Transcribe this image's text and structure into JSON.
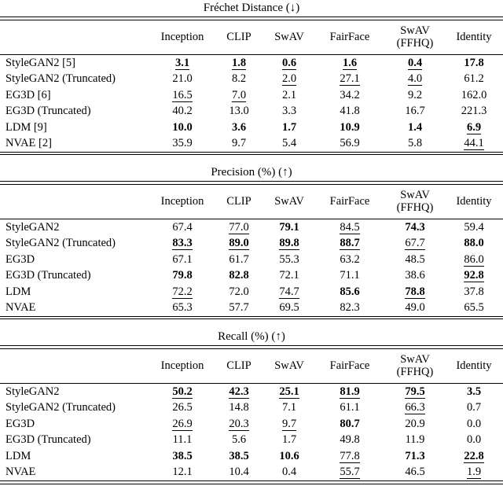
{
  "page": {
    "background": "#ffffff",
    "text_color": "#000000"
  },
  "columns": [
    "Inception",
    "CLIP",
    "SwAV",
    "FairFace",
    "SwAV\n(FFHQ)",
    "Identity"
  ],
  "style_legend": {
    "b": "bold",
    "u": "underline",
    "bu": "bold+underline",
    "": "plain"
  },
  "tables": [
    {
      "title": "Fréchet Distance (↓)",
      "rows": [
        {
          "label": "StyleGAN2 [5]",
          "cells": [
            [
              "3.1",
              "bu"
            ],
            [
              "1.8",
              "bu"
            ],
            [
              "0.6",
              "bu"
            ],
            [
              "1.6",
              "bu"
            ],
            [
              "0.4",
              "bu"
            ],
            [
              "17.8",
              "b"
            ]
          ]
        },
        {
          "label": "StyleGAN2 (Truncated)",
          "cells": [
            [
              "21.0",
              ""
            ],
            [
              "8.2",
              ""
            ],
            [
              "2.0",
              "u"
            ],
            [
              "27.1",
              "u"
            ],
            [
              "4.0",
              "u"
            ],
            [
              "61.2",
              ""
            ]
          ]
        },
        {
          "label": "EG3D [6]",
          "cells": [
            [
              "16.5",
              "u"
            ],
            [
              "7.0",
              "u"
            ],
            [
              "2.1",
              ""
            ],
            [
              "34.2",
              ""
            ],
            [
              "9.2",
              ""
            ],
            [
              "162.0",
              ""
            ]
          ]
        },
        {
          "label": "EG3D (Truncated)",
          "cells": [
            [
              "40.2",
              ""
            ],
            [
              "13.0",
              ""
            ],
            [
              "3.3",
              ""
            ],
            [
              "41.8",
              ""
            ],
            [
              "16.7",
              ""
            ],
            [
              "221.3",
              ""
            ]
          ]
        },
        {
          "label": "LDM [9]",
          "cells": [
            [
              "10.0",
              "b"
            ],
            [
              "3.6",
              "b"
            ],
            [
              "1.7",
              "b"
            ],
            [
              "10.9",
              "b"
            ],
            [
              "1.4",
              "b"
            ],
            [
              "6.9",
              "bu"
            ]
          ]
        },
        {
          "label": "NVAE [2]",
          "cells": [
            [
              "35.9",
              ""
            ],
            [
              "9.7",
              ""
            ],
            [
              "5.4",
              ""
            ],
            [
              "56.9",
              ""
            ],
            [
              "5.8",
              ""
            ],
            [
              "44.1",
              "u"
            ]
          ]
        }
      ]
    },
    {
      "title": "Precision (%) (↑)",
      "rows": [
        {
          "label": "StyleGAN2",
          "cells": [
            [
              "67.4",
              ""
            ],
            [
              "77.0",
              "u"
            ],
            [
              "79.1",
              "b"
            ],
            [
              "84.5",
              "u"
            ],
            [
              "74.3",
              "b"
            ],
            [
              "59.4",
              ""
            ]
          ]
        },
        {
          "label": "StyleGAN2 (Truncated)",
          "cells": [
            [
              "83.3",
              "bu"
            ],
            [
              "89.0",
              "bu"
            ],
            [
              "89.8",
              "bu"
            ],
            [
              "88.7",
              "bu"
            ],
            [
              "67.7",
              "u"
            ],
            [
              "88.0",
              "b"
            ]
          ]
        },
        {
          "label": "EG3D",
          "cells": [
            [
              "67.1",
              ""
            ],
            [
              "61.7",
              ""
            ],
            [
              "55.3",
              ""
            ],
            [
              "63.2",
              ""
            ],
            [
              "48.5",
              ""
            ],
            [
              "86.0",
              "u"
            ]
          ]
        },
        {
          "label": "EG3D (Truncated)",
          "cells": [
            [
              "79.8",
              "b"
            ],
            [
              "82.8",
              "b"
            ],
            [
              "72.1",
              ""
            ],
            [
              "71.1",
              ""
            ],
            [
              "38.6",
              ""
            ],
            [
              "92.8",
              "bu"
            ]
          ]
        },
        {
          "label": "LDM",
          "cells": [
            [
              "72.2",
              "u"
            ],
            [
              "72.0",
              ""
            ],
            [
              "74.7",
              "u"
            ],
            [
              "85.6",
              "b"
            ],
            [
              "78.8",
              "bu"
            ],
            [
              "37.8",
              ""
            ]
          ]
        },
        {
          "label": "NVAE",
          "cells": [
            [
              "65.3",
              ""
            ],
            [
              "57.7",
              ""
            ],
            [
              "69.5",
              ""
            ],
            [
              "82.3",
              ""
            ],
            [
              "49.0",
              ""
            ],
            [
              "65.5",
              ""
            ]
          ]
        }
      ]
    },
    {
      "title": "Recall (%) (↑)",
      "rows": [
        {
          "label": "StyleGAN2",
          "cells": [
            [
              "50.2",
              "bu"
            ],
            [
              "42.3",
              "bu"
            ],
            [
              "25.1",
              "bu"
            ],
            [
              "81.9",
              "bu"
            ],
            [
              "79.5",
              "bu"
            ],
            [
              "3.5",
              "b"
            ]
          ]
        },
        {
          "label": "StyleGAN2 (Truncated)",
          "cells": [
            [
              "26.5",
              ""
            ],
            [
              "14.8",
              ""
            ],
            [
              "7.1",
              ""
            ],
            [
              "61.1",
              ""
            ],
            [
              "66.3",
              "u"
            ],
            [
              "0.7",
              ""
            ]
          ]
        },
        {
          "label": "EG3D",
          "cells": [
            [
              "26.9",
              "u"
            ],
            [
              "20.3",
              "u"
            ],
            [
              "9.7",
              "u"
            ],
            [
              "80.7",
              "b"
            ],
            [
              "20.9",
              ""
            ],
            [
              "0.0",
              ""
            ]
          ]
        },
        {
          "label": "EG3D (Truncated)",
          "cells": [
            [
              "11.1",
              ""
            ],
            [
              "5.6",
              ""
            ],
            [
              "1.7",
              ""
            ],
            [
              "49.8",
              ""
            ],
            [
              "11.9",
              ""
            ],
            [
              "0.0",
              ""
            ]
          ]
        },
        {
          "label": "LDM",
          "cells": [
            [
              "38.5",
              "b"
            ],
            [
              "38.5",
              "b"
            ],
            [
              "10.6",
              "b"
            ],
            [
              "77.8",
              "u"
            ],
            [
              "71.3",
              "b"
            ],
            [
              "22.8",
              "bu"
            ]
          ]
        },
        {
          "label": "NVAE",
          "cells": [
            [
              "12.1",
              ""
            ],
            [
              "10.4",
              ""
            ],
            [
              "0.4",
              ""
            ],
            [
              "55.7",
              "u"
            ],
            [
              "46.5",
              ""
            ],
            [
              "1.9",
              "u"
            ]
          ]
        }
      ]
    }
  ]
}
